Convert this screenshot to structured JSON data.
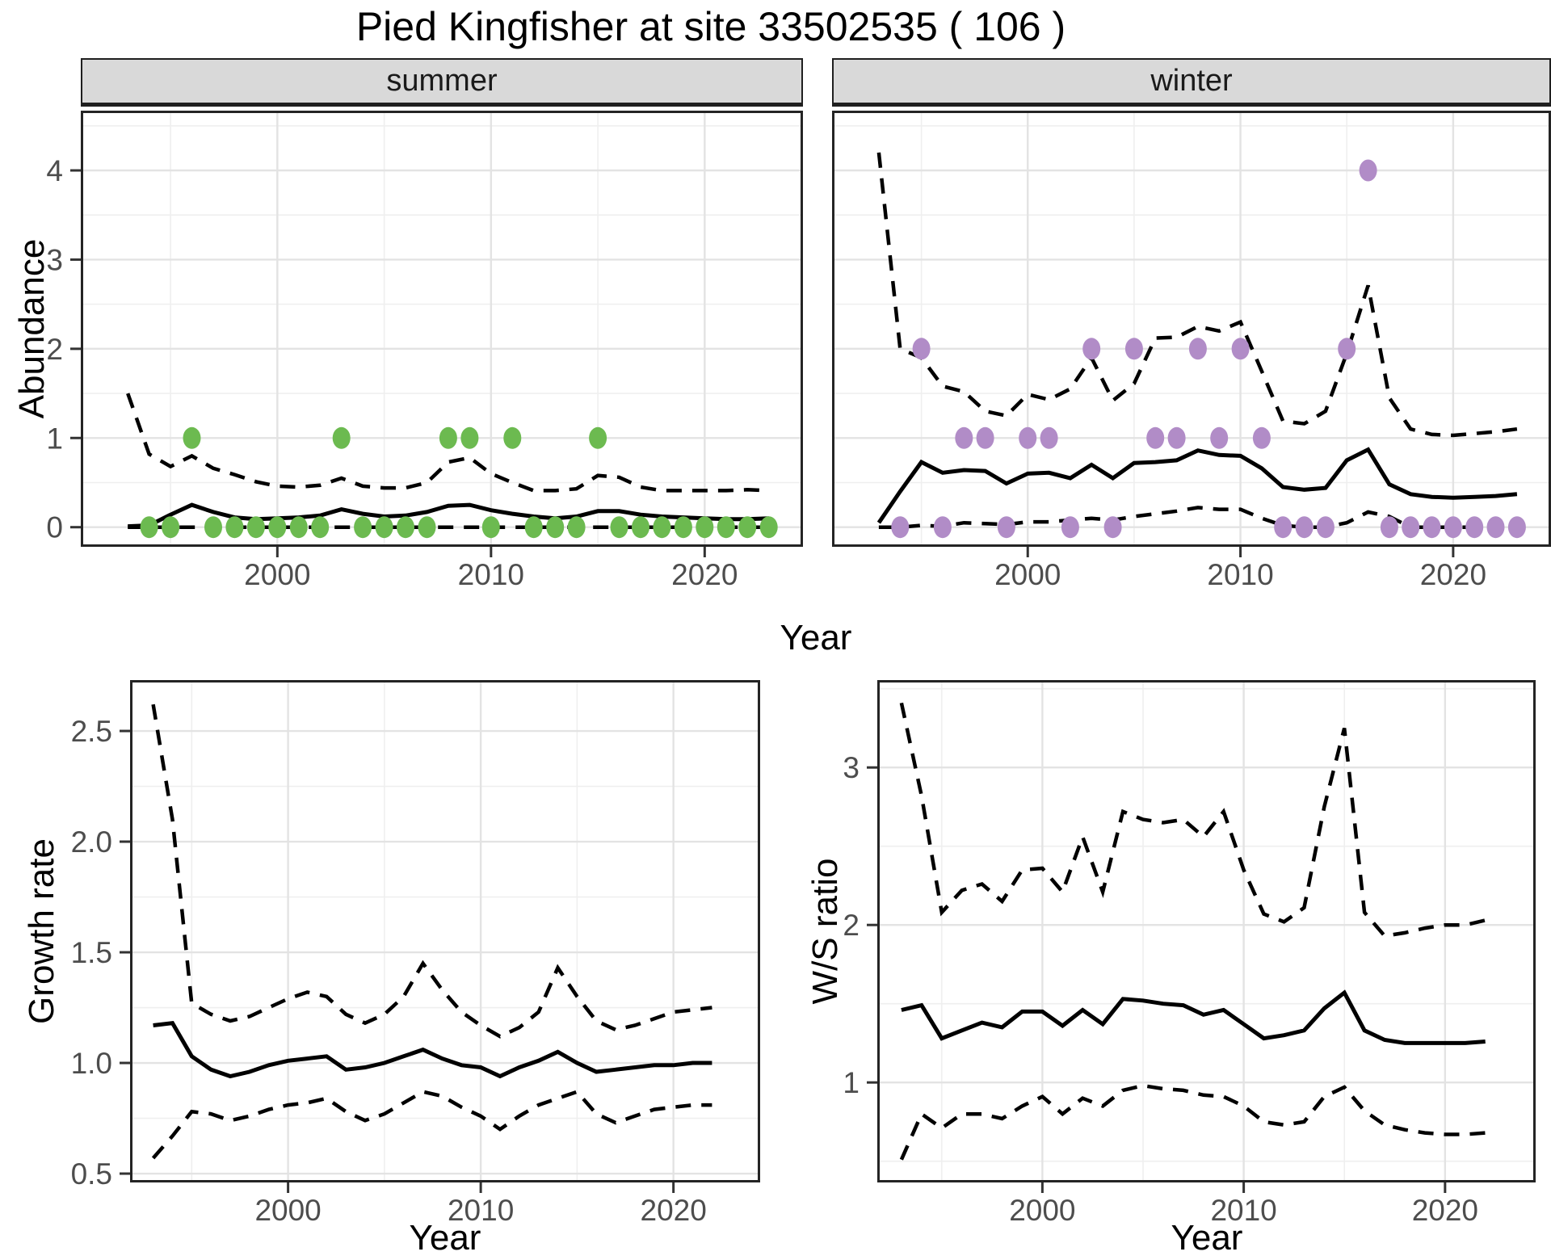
{
  "title": "Pied Kingfisher at site 33502535 ( 106 )",
  "colors": {
    "summer_points": "#6CBA50",
    "winter_points": "#B18CC7",
    "line": "#000000",
    "grid_major": "#E3E3E3",
    "grid_minor": "#EFEFEF",
    "strip_bg": "#D9D9D9",
    "panel_border": "#242424",
    "tick_mark": "#333333",
    "axis_text": "#4D4D4D"
  },
  "chart_data": [
    {
      "panel": "summer",
      "type": "line",
      "facet_label": "summer",
      "ylabel": "Abundance",
      "xlabel": "Year",
      "xlim": [
        1990.8,
        2024.6
      ],
      "ylim": [
        -0.22,
        4.67
      ],
      "xticks": {
        "values": [
          2000,
          2010,
          2020
        ],
        "labels": [
          "2000",
          "2010",
          "2020"
        ]
      },
      "xminor": [
        1995,
        2005,
        2015
      ],
      "yticks": {
        "values": [
          0,
          1,
          2,
          3,
          4
        ],
        "labels": [
          "0",
          "1",
          "2",
          "3",
          "4"
        ]
      },
      "yminor": [
        0.5,
        1.5,
        2.5,
        3.5,
        4.5
      ],
      "x": [
        1993,
        1994,
        1995,
        1996,
        1997,
        1998,
        1999,
        2000,
        2001,
        2002,
        2003,
        2004,
        2005,
        2006,
        2007,
        2008,
        2009,
        2010,
        2011,
        2012,
        2013,
        2014,
        2015,
        2016,
        2017,
        2018,
        2019,
        2020,
        2021,
        2022,
        2023
      ],
      "series": [
        {
          "name": "mean",
          "style": "solid",
          "values": [
            0.01,
            0.02,
            0.14,
            0.25,
            0.17,
            0.11,
            0.09,
            0.1,
            0.11,
            0.13,
            0.2,
            0.15,
            0.12,
            0.13,
            0.17,
            0.24,
            0.25,
            0.19,
            0.15,
            0.12,
            0.1,
            0.12,
            0.18,
            0.18,
            0.14,
            0.12,
            0.11,
            0.1,
            0.09,
            0.09,
            0.1
          ]
        },
        {
          "name": "upper_ci",
          "style": "dashed",
          "values": [
            1.5,
            0.82,
            0.68,
            0.8,
            0.66,
            0.59,
            0.51,
            0.46,
            0.45,
            0.47,
            0.55,
            0.46,
            0.44,
            0.44,
            0.5,
            0.73,
            0.78,
            0.6,
            0.5,
            0.41,
            0.41,
            0.43,
            0.58,
            0.56,
            0.45,
            0.41,
            0.41,
            0.41,
            0.41,
            0.42,
            0.41
          ]
        },
        {
          "name": "lower_ci",
          "style": "dashed",
          "values": [
            0,
            0,
            0,
            0,
            0,
            0,
            0,
            0,
            0,
            0,
            0,
            0,
            0,
            0,
            0,
            0,
            0,
            0,
            0,
            0,
            0,
            0,
            0,
            0,
            0,
            0,
            0,
            0,
            0,
            0,
            0
          ]
        }
      ],
      "points": {
        "name": "observed-counts",
        "color_key": "summer_points",
        "x": [
          1994,
          1995,
          1996,
          1997,
          1998,
          1999,
          2000,
          2001,
          2002,
          2003,
          2004,
          2005,
          2006,
          2007,
          2008,
          2009,
          2010,
          2011,
          2012,
          2013,
          2014,
          2015,
          2016,
          2017,
          2018,
          2019,
          2020,
          2021,
          2022,
          2023
        ],
        "y": [
          0,
          0,
          1,
          0,
          0,
          0,
          0,
          0,
          0,
          1,
          0,
          0,
          0,
          0,
          1,
          1,
          0,
          1,
          0,
          0,
          0,
          1,
          0,
          0,
          0,
          0,
          0,
          0,
          0,
          0
        ]
      }
    },
    {
      "panel": "winter",
      "type": "line",
      "facet_label": "winter",
      "ylabel": "Abundance",
      "xlabel": "Year",
      "xlim": [
        1990.8,
        2024.6
      ],
      "ylim": [
        -0.22,
        4.67
      ],
      "xticks": {
        "values": [
          2000,
          2010,
          2020
        ],
        "labels": [
          "2000",
          "2010",
          "2020"
        ]
      },
      "xminor": [
        1995,
        2005,
        2015
      ],
      "yticks": {
        "values": [
          0,
          1,
          2,
          3,
          4
        ],
        "labels": [
          "0",
          "1",
          "2",
          "3",
          "4"
        ]
      },
      "yminor": [
        0.5,
        1.5,
        2.5,
        3.5,
        4.5
      ],
      "x": [
        1993,
        1994,
        1995,
        1996,
        1997,
        1998,
        1999,
        2000,
        2001,
        2002,
        2003,
        2004,
        2005,
        2006,
        2007,
        2008,
        2009,
        2010,
        2011,
        2012,
        2013,
        2014,
        2015,
        2016,
        2017,
        2018,
        2019,
        2020,
        2021,
        2022,
        2023
      ],
      "series": [
        {
          "name": "mean",
          "style": "solid",
          "values": [
            0.05,
            0.4,
            0.73,
            0.61,
            0.64,
            0.63,
            0.49,
            0.6,
            0.61,
            0.55,
            0.7,
            0.55,
            0.72,
            0.73,
            0.75,
            0.86,
            0.81,
            0.8,
            0.66,
            0.45,
            0.42,
            0.44,
            0.75,
            0.87,
            0.48,
            0.37,
            0.34,
            0.33,
            0.34,
            0.35,
            0.37
          ]
        },
        {
          "name": "upper_ci",
          "style": "dashed",
          "values": [
            4.2,
            2.0,
            1.9,
            1.58,
            1.52,
            1.3,
            1.25,
            1.49,
            1.43,
            1.55,
            1.9,
            1.42,
            1.61,
            2.12,
            2.13,
            2.25,
            2.2,
            2.3,
            1.75,
            1.19,
            1.16,
            1.3,
            1.95,
            2.71,
            1.45,
            1.1,
            1.04,
            1.03,
            1.05,
            1.07,
            1.1
          ]
        },
        {
          "name": "lower_ci",
          "style": "dashed",
          "values": [
            0.0,
            0.0,
            0.02,
            0.01,
            0.05,
            0.04,
            0.03,
            0.06,
            0.06,
            0.08,
            0.1,
            0.08,
            0.12,
            0.15,
            0.18,
            0.22,
            0.2,
            0.2,
            0.1,
            0.02,
            0.0,
            0.0,
            0.05,
            0.17,
            0.12,
            0.0,
            0.0,
            0.0,
            0.0,
            0.0,
            0.0
          ]
        }
      ],
      "points": {
        "name": "observed-counts",
        "color_key": "winter_points",
        "x": [
          1994,
          1995,
          1996,
          1997,
          1998,
          1999,
          2000,
          2001,
          2002,
          2003,
          2004,
          2005,
          2006,
          2007,
          2008,
          2009,
          2010,
          2011,
          2012,
          2013,
          2014,
          2015,
          2016,
          2017,
          2018,
          2019,
          2020,
          2021,
          2022,
          2023
        ],
        "y": [
          0,
          2,
          0,
          1,
          1,
          0,
          1,
          1,
          0,
          2,
          0,
          2,
          1,
          1,
          2,
          1,
          2,
          1,
          0,
          0,
          0,
          2,
          4,
          0,
          0,
          0,
          0,
          0,
          0,
          0
        ]
      }
    },
    {
      "panel": "growth",
      "type": "line",
      "facet_label": "",
      "ylabel": "Growth rate",
      "xlabel": "Year",
      "xlim": [
        1991.8,
        2024.5
      ],
      "ylim": [
        0.46,
        2.73
      ],
      "xticks": {
        "values": [
          2000,
          2010,
          2020
        ],
        "labels": [
          "2000",
          "2010",
          "2020"
        ]
      },
      "xminor": [
        1995,
        2005,
        2015
      ],
      "yticks": {
        "values": [
          0.5,
          1.0,
          1.5,
          2.0,
          2.5
        ],
        "labels": [
          "0.5",
          "1.0",
          "1.5",
          "2.0",
          "2.5"
        ]
      },
      "yminor": [
        0.75,
        1.25,
        1.75,
        2.25
      ],
      "x": [
        1993,
        1994,
        1995,
        1996,
        1997,
        1998,
        1999,
        2000,
        2001,
        2002,
        2003,
        2004,
        2005,
        2006,
        2007,
        2008,
        2009,
        2010,
        2011,
        2012,
        2013,
        2014,
        2015,
        2016,
        2017,
        2018,
        2019,
        2020,
        2021,
        2022
      ],
      "series": [
        {
          "name": "mean",
          "style": "solid",
          "values": [
            1.17,
            1.18,
            1.03,
            0.97,
            0.94,
            0.96,
            0.99,
            1.01,
            1.02,
            1.03,
            0.97,
            0.98,
            1.0,
            1.03,
            1.06,
            1.02,
            0.99,
            0.98,
            0.94,
            0.98,
            1.01,
            1.05,
            1.0,
            0.96,
            0.97,
            0.98,
            0.99,
            0.99,
            1.0,
            1.0
          ]
        },
        {
          "name": "upper_ci",
          "style": "dashed",
          "values": [
            2.62,
            2.1,
            1.27,
            1.22,
            1.19,
            1.21,
            1.25,
            1.29,
            1.32,
            1.3,
            1.22,
            1.18,
            1.22,
            1.3,
            1.45,
            1.33,
            1.23,
            1.17,
            1.12,
            1.16,
            1.23,
            1.43,
            1.3,
            1.19,
            1.15,
            1.17,
            1.2,
            1.23,
            1.24,
            1.25
          ]
        },
        {
          "name": "lower_ci",
          "style": "dashed",
          "values": [
            0.57,
            0.67,
            0.78,
            0.77,
            0.74,
            0.76,
            0.79,
            0.81,
            0.82,
            0.84,
            0.78,
            0.74,
            0.77,
            0.82,
            0.87,
            0.85,
            0.8,
            0.76,
            0.7,
            0.76,
            0.81,
            0.84,
            0.87,
            0.77,
            0.73,
            0.76,
            0.79,
            0.8,
            0.81,
            0.81
          ]
        }
      ],
      "points": null
    },
    {
      "panel": "ws",
      "type": "line",
      "facet_label": "",
      "ylabel": "W/S ratio",
      "xlabel": "Year",
      "xlim": [
        1991.8,
        2024.5
      ],
      "ylim": [
        0.365,
        3.555
      ],
      "xticks": {
        "values": [
          2000,
          2010,
          2020
        ],
        "labels": [
          "2000",
          "2010",
          "2020"
        ]
      },
      "xminor": [
        1995,
        2005,
        2015
      ],
      "yticks": {
        "values": [
          1,
          2,
          3
        ],
        "labels": [
          "1",
          "2",
          "3"
        ]
      },
      "yminor": [
        0.5,
        1.5,
        2.5,
        3.5
      ],
      "x": [
        1993,
        1994,
        1995,
        1996,
        1997,
        1998,
        1999,
        2000,
        2001,
        2002,
        2003,
        2004,
        2005,
        2006,
        2007,
        2008,
        2009,
        2010,
        2011,
        2012,
        2013,
        2014,
        2015,
        2016,
        2017,
        2018,
        2019,
        2020,
        2021,
        2022
      ],
      "series": [
        {
          "name": "mean",
          "style": "solid",
          "values": [
            1.46,
            1.49,
            1.28,
            1.33,
            1.38,
            1.35,
            1.45,
            1.45,
            1.36,
            1.46,
            1.37,
            1.53,
            1.52,
            1.5,
            1.49,
            1.43,
            1.46,
            1.37,
            1.28,
            1.3,
            1.33,
            1.47,
            1.57,
            1.33,
            1.27,
            1.25,
            1.25,
            1.25,
            1.25,
            1.26
          ]
        },
        {
          "name": "upper_ci",
          "style": "dashed",
          "values": [
            3.41,
            2.82,
            2.08,
            2.22,
            2.26,
            2.15,
            2.35,
            2.36,
            2.21,
            2.56,
            2.21,
            2.72,
            2.67,
            2.65,
            2.67,
            2.56,
            2.72,
            2.35,
            2.07,
            2.02,
            2.11,
            2.75,
            3.25,
            2.08,
            1.93,
            1.95,
            1.98,
            2.0,
            2.0,
            2.03
          ]
        },
        {
          "name": "lower_ci",
          "style": "dashed",
          "values": [
            0.51,
            0.8,
            0.71,
            0.8,
            0.8,
            0.77,
            0.85,
            0.91,
            0.8,
            0.9,
            0.85,
            0.95,
            0.98,
            0.96,
            0.95,
            0.92,
            0.91,
            0.85,
            0.75,
            0.73,
            0.75,
            0.91,
            0.97,
            0.82,
            0.73,
            0.7,
            0.68,
            0.67,
            0.67,
            0.68
          ]
        }
      ],
      "points": null
    }
  ]
}
